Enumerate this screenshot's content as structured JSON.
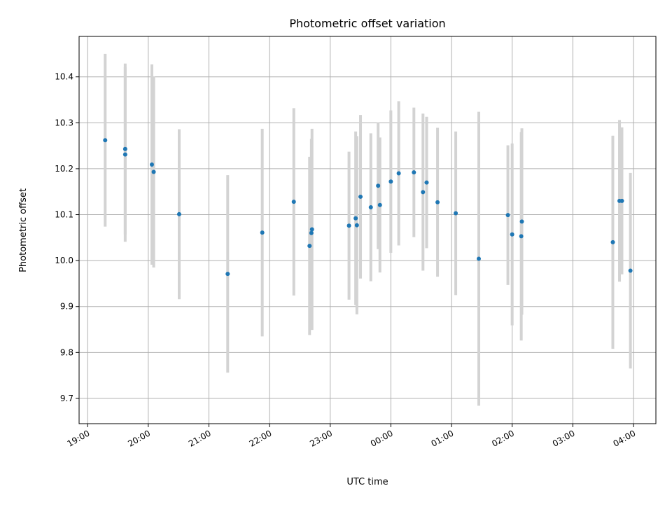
{
  "chart_data": {
    "type": "scatter",
    "title": "Photometric offset variation",
    "xlabel": "UTC time",
    "ylabel": "Photometric offset",
    "x_unit": "hours since 19:00 UTC",
    "xlim": [
      -0.14,
      9.37
    ],
    "ylim": [
      9.645,
      10.488
    ],
    "grid": true,
    "x_ticks": [
      {
        "value": 0,
        "label": "19:00"
      },
      {
        "value": 1,
        "label": "20:00"
      },
      {
        "value": 2,
        "label": "21:00"
      },
      {
        "value": 3,
        "label": "22:00"
      },
      {
        "value": 4,
        "label": "23:00"
      },
      {
        "value": 5,
        "label": "00:00"
      },
      {
        "value": 6,
        "label": "01:00"
      },
      {
        "value": 7,
        "label": "02:00"
      },
      {
        "value": 8,
        "label": "03:00"
      },
      {
        "value": 9,
        "label": "04:00"
      }
    ],
    "y_ticks": [
      {
        "value": 9.7,
        "label": "9.7"
      },
      {
        "value": 9.8,
        "label": "9.8"
      },
      {
        "value": 9.9,
        "label": "9.9"
      },
      {
        "value": 10.0,
        "label": "10.0"
      },
      {
        "value": 10.1,
        "label": "10.1"
      },
      {
        "value": 10.2,
        "label": "10.2"
      },
      {
        "value": 10.3,
        "label": "10.3"
      },
      {
        "value": 10.4,
        "label": "10.4"
      }
    ],
    "series": [
      {
        "name": "Photometric offset",
        "marker_color": "#1f77b4",
        "errorbar_color": "#d3d3d3",
        "points": [
          {
            "x": 0.29,
            "y": 10.262,
            "err": 0.188
          },
          {
            "x": 0.62,
            "y": 10.243,
            "err": 0.186
          },
          {
            "x": 0.62,
            "y": 10.231,
            "err": 0.19
          },
          {
            "x": 1.06,
            "y": 10.209,
            "err": 0.218
          },
          {
            "x": 1.09,
            "y": 10.193,
            "err": 0.208
          },
          {
            "x": 1.51,
            "y": 10.101,
            "err": 0.185
          },
          {
            "x": 2.31,
            "y": 9.971,
            "err": 0.215
          },
          {
            "x": 2.88,
            "y": 10.061,
            "err": 0.226
          },
          {
            "x": 3.4,
            "y": 10.128,
            "err": 0.204
          },
          {
            "x": 3.66,
            "y": 10.032,
            "err": 0.194
          },
          {
            "x": 3.69,
            "y": 10.06,
            "err": 0.205
          },
          {
            "x": 3.7,
            "y": 10.068,
            "err": 0.219
          },
          {
            "x": 4.31,
            "y": 10.076,
            "err": 0.161
          },
          {
            "x": 4.42,
            "y": 10.092,
            "err": 0.189
          },
          {
            "x": 4.44,
            "y": 10.077,
            "err": 0.194
          },
          {
            "x": 4.5,
            "y": 10.139,
            "err": 0.178
          },
          {
            "x": 4.67,
            "y": 10.116,
            "err": 0.161
          },
          {
            "x": 4.79,
            "y": 10.163,
            "err": 0.138
          },
          {
            "x": 4.82,
            "y": 10.121,
            "err": 0.147
          },
          {
            "x": 5.0,
            "y": 10.172,
            "err": 0.155
          },
          {
            "x": 5.13,
            "y": 10.19,
            "err": 0.157
          },
          {
            "x": 5.38,
            "y": 10.192,
            "err": 0.141
          },
          {
            "x": 5.53,
            "y": 10.149,
            "err": 0.171
          },
          {
            "x": 5.59,
            "y": 10.17,
            "err": 0.143
          },
          {
            "x": 5.77,
            "y": 10.127,
            "err": 0.162
          },
          {
            "x": 6.07,
            "y": 10.103,
            "err": 0.178
          },
          {
            "x": 6.45,
            "y": 10.004,
            "err": 0.32
          },
          {
            "x": 6.93,
            "y": 10.099,
            "err": 0.152
          },
          {
            "x": 7.0,
            "y": 10.057,
            "err": 0.198
          },
          {
            "x": 7.15,
            "y": 10.053,
            "err": 0.227
          },
          {
            "x": 7.16,
            "y": 10.085,
            "err": 0.203
          },
          {
            "x": 8.66,
            "y": 10.04,
            "err": 0.232
          },
          {
            "x": 8.77,
            "y": 10.13,
            "err": 0.176
          },
          {
            "x": 8.81,
            "y": 10.13,
            "err": 0.16
          },
          {
            "x": 8.95,
            "y": 9.978,
            "err": 0.213
          }
        ]
      }
    ]
  }
}
